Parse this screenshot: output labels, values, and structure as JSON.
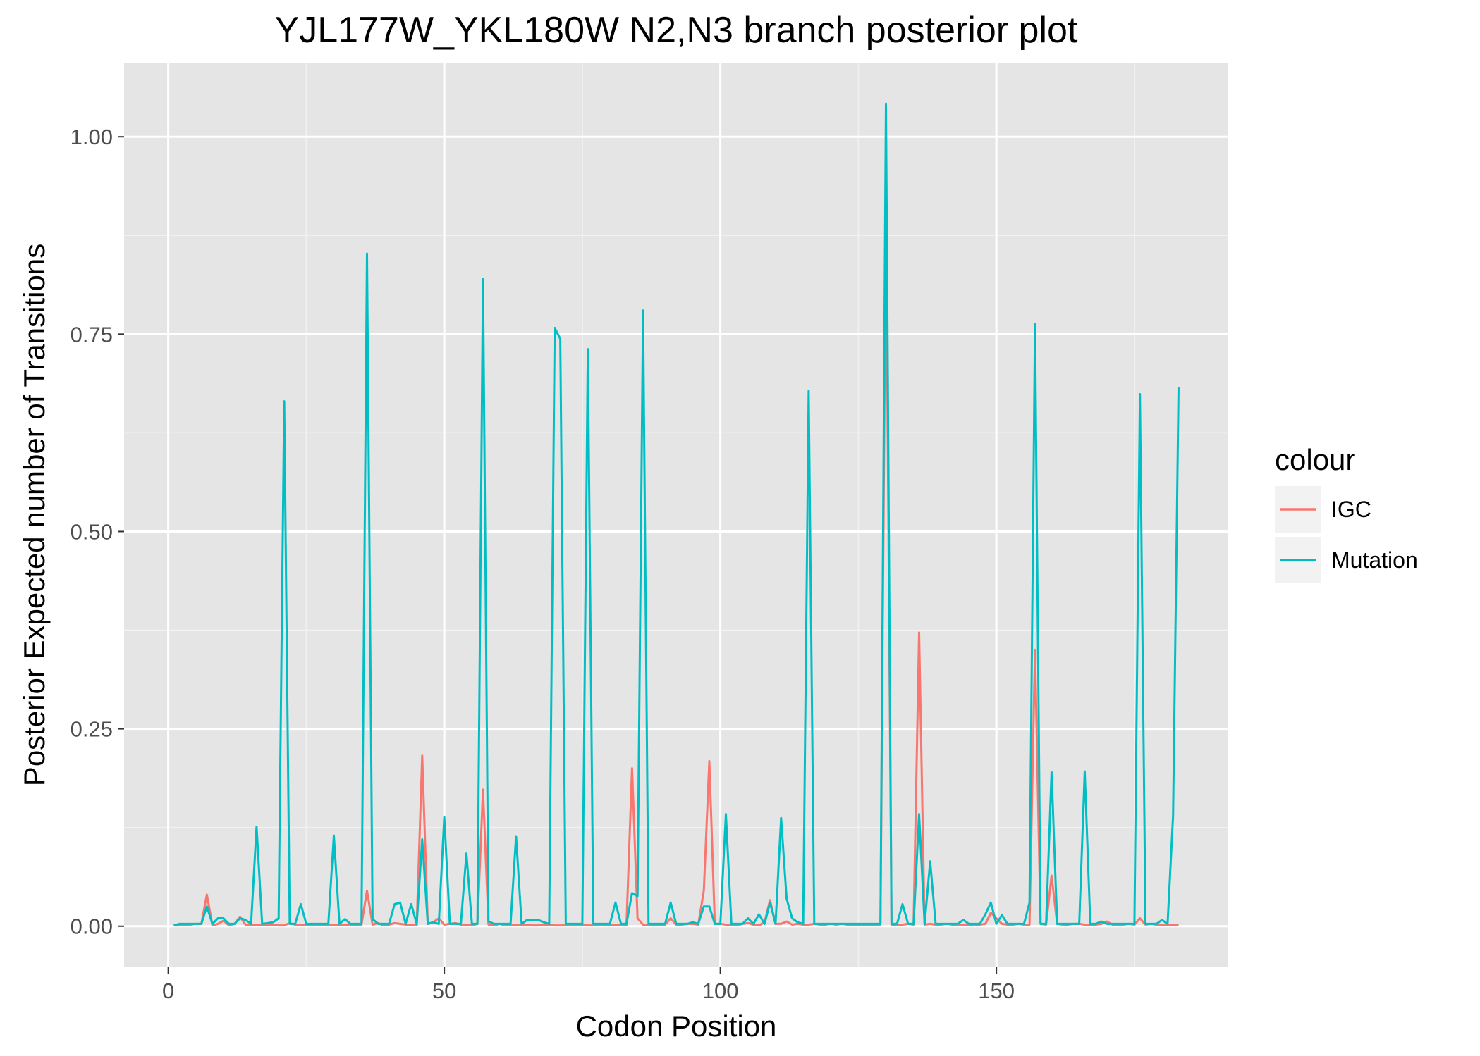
{
  "chart_data": {
    "type": "line",
    "title": "YJL177W_YKL180W N2,N3 branch posterior plot",
    "xlabel": "Codon Position",
    "ylabel": "Posterior Expected number of Transitions",
    "xlim": [
      -8,
      192
    ],
    "ylim": [
      -0.052,
      1.093
    ],
    "x_ticks": [
      0,
      50,
      100,
      150
    ],
    "x_tick_labels": [
      "0",
      "50",
      "100",
      "150"
    ],
    "y_ticks": [
      0,
      0.25,
      0.5,
      0.75,
      1.0
    ],
    "y_tick_labels": [
      "0.00",
      "0.25",
      "0.50",
      "0.75",
      "1.00"
    ],
    "grid": true,
    "legend": {
      "title": "colour",
      "placement": "right",
      "entries": [
        "IGC",
        "Mutation"
      ]
    },
    "series": [
      {
        "name": "IGC",
        "color": "#f8766d",
        "x": [
          1,
          2,
          3,
          4,
          5,
          6,
          7,
          8,
          9,
          10,
          11,
          12,
          13,
          14,
          15,
          16,
          17,
          18,
          19,
          20,
          21,
          22,
          23,
          24,
          25,
          26,
          27,
          28,
          29,
          30,
          31,
          32,
          33,
          34,
          35,
          36,
          37,
          38,
          39,
          40,
          41,
          42,
          43,
          44,
          45,
          46,
          47,
          48,
          49,
          50,
          51,
          52,
          53,
          54,
          55,
          56,
          57,
          58,
          59,
          60,
          61,
          62,
          63,
          64,
          65,
          66,
          67,
          68,
          69,
          70,
          71,
          72,
          73,
          74,
          75,
          76,
          77,
          78,
          79,
          80,
          81,
          82,
          83,
          84,
          85,
          86,
          87,
          88,
          89,
          90,
          91,
          92,
          93,
          94,
          95,
          96,
          97,
          98,
          99,
          100,
          101,
          102,
          103,
          104,
          105,
          106,
          107,
          108,
          109,
          110,
          111,
          112,
          113,
          114,
          115,
          116,
          117,
          118,
          119,
          120,
          121,
          122,
          123,
          124,
          125,
          126,
          127,
          128,
          129,
          130,
          131,
          132,
          133,
          134,
          135,
          136,
          137,
          138,
          139,
          140,
          141,
          142,
          143,
          144,
          145,
          146,
          147,
          148,
          149,
          150,
          151,
          152,
          153,
          154,
          155,
          156,
          157,
          158,
          159,
          160,
          161,
          162,
          163,
          164,
          165,
          166,
          167,
          168,
          169,
          170,
          171,
          172,
          173,
          174,
          175,
          176,
          177,
          178,
          179,
          180,
          181,
          182,
          183
        ],
        "values": [
          0.001,
          0.001,
          0.002,
          0.002,
          0.003,
          0.003,
          0.04,
          0.001,
          0.003,
          0.007,
          0.001,
          0.003,
          0.012,
          0.002,
          0.001,
          0.002,
          0.002,
          0.002,
          0.002,
          0.001,
          0.001,
          0.004,
          0.002,
          0.002,
          0.002,
          0.002,
          0.002,
          0.002,
          0.002,
          0.002,
          0.001,
          0.002,
          0.002,
          0.001,
          0.002,
          0.045,
          0.002,
          0.004,
          0.001,
          0.002,
          0.004,
          0.003,
          0.002,
          0.002,
          0.001,
          0.216,
          0.003,
          0.005,
          0.01,
          0.002,
          0.003,
          0.004,
          0.002,
          0.002,
          0.001,
          0.003,
          0.173,
          0.002,
          0.001,
          0.003,
          0.001,
          0.002,
          0.002,
          0.002,
          0.002,
          0.001,
          0.001,
          0.002,
          0.002,
          0.001,
          0.001,
          0.001,
          0.001,
          0.001,
          0.002,
          0.001,
          0.001,
          0.002,
          0.002,
          0.002,
          0.002,
          0.002,
          0.001,
          0.2,
          0.01,
          0.002,
          0.002,
          0.002,
          0.002,
          0.002,
          0.01,
          0.002,
          0.002,
          0.003,
          0.003,
          0.002,
          0.045,
          0.209,
          0.003,
          0.003,
          0.002,
          0.002,
          0.001,
          0.003,
          0.004,
          0.002,
          0.001,
          0.005,
          0.033,
          0.003,
          0.003,
          0.006,
          0.002,
          0.003,
          0.002,
          0.002,
          0.003,
          0.002,
          0.002,
          0.003,
          0.002,
          0.003,
          0.002,
          0.002,
          0.002,
          0.002,
          0.002,
          0.002,
          0.002,
          0.917,
          0.002,
          0.002,
          0.002,
          0.003,
          0.002,
          0.372,
          0.002,
          0.003,
          0.002,
          0.002,
          0.003,
          0.002,
          0.002,
          0.002,
          0.002,
          0.002,
          0.002,
          0.003,
          0.017,
          0.01,
          0.003,
          0.002,
          0.002,
          0.003,
          0.002,
          0.002,
          0.35,
          0.003,
          0.002,
          0.064,
          0.003,
          0.002,
          0.002,
          0.003,
          0.003,
          0.002,
          0.002,
          0.002,
          0.003,
          0.006,
          0.002,
          0.002,
          0.002,
          0.003,
          0.002,
          0.01,
          0.002,
          0.003,
          0.002,
          0.002,
          0.002,
          0.002,
          0.002
        ]
      },
      {
        "name": "Mutation",
        "color": "#00bfc4",
        "x": [
          1,
          2,
          3,
          4,
          5,
          6,
          7,
          8,
          9,
          10,
          11,
          12,
          13,
          14,
          15,
          16,
          17,
          18,
          19,
          20,
          21,
          22,
          23,
          24,
          25,
          26,
          27,
          28,
          29,
          30,
          31,
          32,
          33,
          34,
          35,
          36,
          37,
          38,
          39,
          40,
          41,
          42,
          43,
          44,
          45,
          46,
          47,
          48,
          49,
          50,
          51,
          52,
          53,
          54,
          55,
          56,
          57,
          58,
          59,
          60,
          61,
          62,
          63,
          64,
          65,
          66,
          67,
          68,
          69,
          70,
          71,
          72,
          73,
          74,
          75,
          76,
          77,
          78,
          79,
          80,
          81,
          82,
          83,
          84,
          85,
          86,
          87,
          88,
          89,
          90,
          91,
          92,
          93,
          94,
          95,
          96,
          97,
          98,
          99,
          100,
          101,
          102,
          103,
          104,
          105,
          106,
          107,
          108,
          109,
          110,
          111,
          112,
          113,
          114,
          115,
          116,
          117,
          118,
          119,
          120,
          121,
          122,
          123,
          124,
          125,
          126,
          127,
          128,
          129,
          130,
          131,
          132,
          133,
          134,
          135,
          136,
          137,
          138,
          139,
          140,
          141,
          142,
          143,
          144,
          145,
          146,
          147,
          148,
          149,
          150,
          151,
          152,
          153,
          154,
          155,
          156,
          157,
          158,
          159,
          160,
          161,
          162,
          163,
          164,
          165,
          166,
          167,
          168,
          169,
          170,
          171,
          172,
          173,
          174,
          175,
          176,
          177,
          178,
          179,
          180,
          181,
          182,
          183
        ],
        "values": [
          0.001,
          0.003,
          0.003,
          0.003,
          0.003,
          0.003,
          0.025,
          0.003,
          0.01,
          0.01,
          0.003,
          0.003,
          0.01,
          0.008,
          0.003,
          0.126,
          0.003,
          0.004,
          0.005,
          0.01,
          0.665,
          0.003,
          0.003,
          0.028,
          0.003,
          0.003,
          0.003,
          0.003,
          0.003,
          0.115,
          0.003,
          0.009,
          0.003,
          0.003,
          0.003,
          0.852,
          0.009,
          0.003,
          0.003,
          0.003,
          0.028,
          0.03,
          0.003,
          0.028,
          0.003,
          0.11,
          0.003,
          0.005,
          0.003,
          0.138,
          0.003,
          0.003,
          0.003,
          0.092,
          0.003,
          0.003,
          0.82,
          0.006,
          0.003,
          0.003,
          0.003,
          0.003,
          0.114,
          0.003,
          0.008,
          0.008,
          0.008,
          0.005,
          0.003,
          0.758,
          0.744,
          0.003,
          0.003,
          0.003,
          0.003,
          0.731,
          0.003,
          0.003,
          0.003,
          0.003,
          0.03,
          0.003,
          0.003,
          0.042,
          0.038,
          0.78,
          0.003,
          0.003,
          0.003,
          0.003,
          0.03,
          0.003,
          0.003,
          0.003,
          0.005,
          0.003,
          0.025,
          0.025,
          0.003,
          0.003,
          0.142,
          0.003,
          0.003,
          0.003,
          0.01,
          0.003,
          0.015,
          0.003,
          0.03,
          0.003,
          0.137,
          0.035,
          0.01,
          0.005,
          0.003,
          0.678,
          0.003,
          0.003,
          0.003,
          0.003,
          0.003,
          0.003,
          0.003,
          0.003,
          0.003,
          0.003,
          0.003,
          0.003,
          0.003,
          1.042,
          0.003,
          0.003,
          0.028,
          0.003,
          0.003,
          0.142,
          0.003,
          0.082,
          0.003,
          0.003,
          0.003,
          0.003,
          0.003,
          0.008,
          0.003,
          0.003,
          0.003,
          0.015,
          0.03,
          0.003,
          0.014,
          0.003,
          0.003,
          0.003,
          0.003,
          0.03,
          0.763,
          0.003,
          0.003,
          0.195,
          0.003,
          0.003,
          0.003,
          0.003,
          0.003,
          0.196,
          0.003,
          0.003,
          0.006,
          0.003,
          0.003,
          0.003,
          0.003,
          0.003,
          0.003,
          0.674,
          0.003,
          0.003,
          0.003,
          0.008,
          0.003,
          0.14,
          0.683
        ]
      }
    ]
  }
}
